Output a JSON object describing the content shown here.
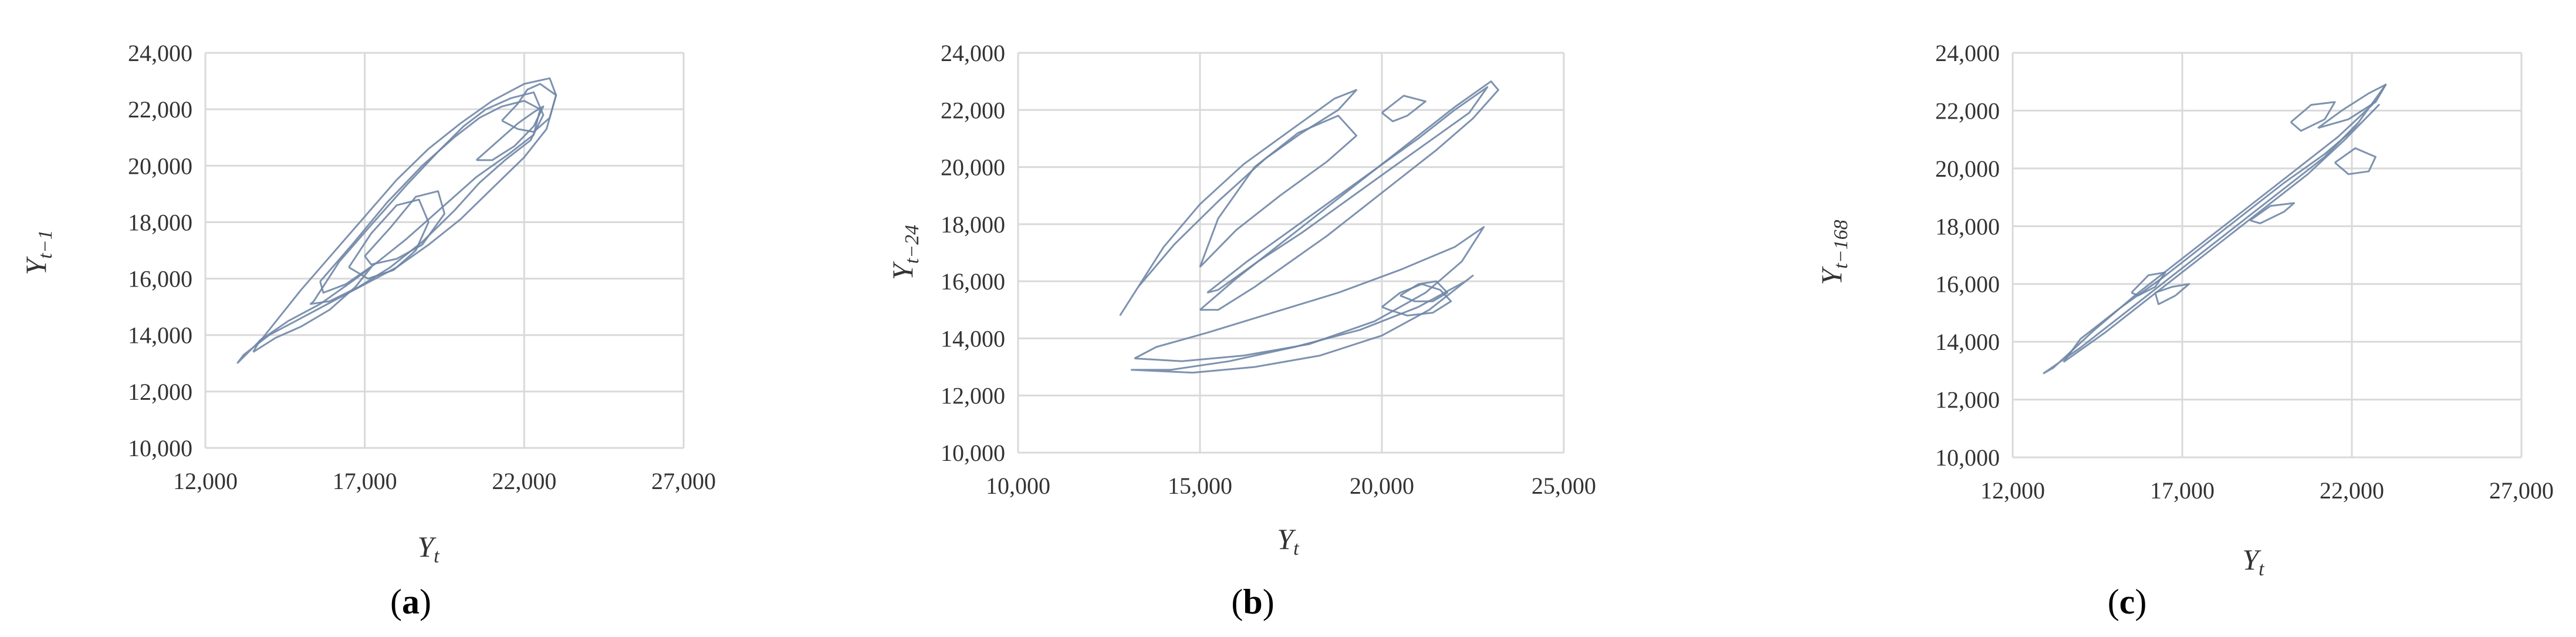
{
  "chart_data": [
    {
      "type": "line",
      "panel_label": "a",
      "xlabel": "Y",
      "xlabel_sub": "t",
      "ylabel": "Y",
      "ylabel_sub": "t−1",
      "xlim": [
        12000,
        27000
      ],
      "ylim": [
        10000,
        24000
      ],
      "xticks": [
        "12,000",
        "17,000",
        "22,000",
        "27,000"
      ],
      "yticks": [
        "10,000",
        "12,000",
        "14,000",
        "16,000",
        "18,000",
        "20,000",
        "22,000",
        "24,000"
      ],
      "grid": true,
      "color": "#6f86a6",
      "series": [
        {
          "x": [
            13000,
            13800,
            15000,
            16000,
            17000,
            18000,
            19000,
            20000,
            21000,
            22000,
            22800,
            23000,
            22700,
            22000,
            21000,
            20000,
            19000,
            18000,
            17000,
            16000,
            15000,
            14000,
            13200,
            13000
          ],
          "y": [
            13000,
            13900,
            15600,
            16900,
            18200,
            19500,
            20600,
            21500,
            22300,
            22900,
            23100,
            22500,
            21300,
            20300,
            19200,
            18100,
            17200,
            16400,
            15800,
            15200,
            14600,
            14000,
            13300,
            13000
          ]
        },
        {
          "x": [
            15400,
            16200,
            17200,
            18300,
            19300,
            20100,
            20800,
            21600,
            22300,
            22600,
            22200,
            21400,
            20600,
            19800,
            18800,
            17800,
            16800,
            15900,
            15300,
            15400
          ],
          "y": [
            15200,
            16600,
            17900,
            19300,
            20500,
            21400,
            22000,
            22400,
            22600,
            21800,
            20900,
            20200,
            19400,
            18400,
            17300,
            16400,
            15700,
            15200,
            15100,
            15200
          ]
        },
        {
          "x": [
            15600,
            16600,
            17700,
            18800,
            19800,
            20600,
            21300,
            22000,
            22500,
            22300,
            21500,
            20500,
            19400,
            18300,
            17300,
            16400,
            15700,
            15600
          ],
          "y": [
            15900,
            17200,
            18700,
            20000,
            21000,
            21700,
            22100,
            22300,
            22000,
            21100,
            20400,
            19600,
            18500,
            17400,
            16500,
            15800,
            15500,
            15900
          ]
        },
        {
          "x": [
            16500,
            17200,
            18000,
            18700,
            19000,
            18600,
            17900,
            17100,
            16500
          ],
          "y": [
            16400,
            17600,
            18600,
            18800,
            18000,
            17000,
            16300,
            16000,
            16400
          ]
        },
        {
          "x": [
            17000,
            17800,
            18600,
            19300,
            19500,
            18800,
            18000,
            17200,
            17000
          ],
          "y": [
            16800,
            17800,
            18900,
            19100,
            18300,
            17200,
            16700,
            16500,
            16800
          ]
        },
        {
          "x": [
            20500,
            21200,
            21800,
            22300,
            22600,
            22300,
            21700,
            21000,
            20500
          ],
          "y": [
            20200,
            20900,
            21500,
            21900,
            22100,
            21400,
            20700,
            20200,
            20200
          ]
        },
        {
          "x": [
            13500,
            14200,
            15000,
            15900,
            16700,
            17200,
            16600,
            15600,
            14600,
            13700,
            13500
          ],
          "y": [
            13400,
            13900,
            14300,
            14900,
            15700,
            16400,
            15900,
            15100,
            14500,
            13800,
            13400
          ]
        },
        {
          "x": [
            21300,
            21800,
            22100,
            22500,
            23000,
            22800,
            22300,
            21800,
            21300
          ],
          "y": [
            21600,
            22200,
            22700,
            22900,
            22500,
            21700,
            21200,
            21300,
            21600
          ]
        }
      ]
    },
    {
      "type": "line",
      "panel_label": "b",
      "xlabel": "Y",
      "xlabel_sub": "t",
      "ylabel": "Y",
      "ylabel_sub": "t−24",
      "xlim": [
        10000,
        25000
      ],
      "ylim": [
        10000,
        24000
      ],
      "xticks": [
        "10,000",
        "15,000",
        "20,000",
        "25,000"
      ],
      "yticks": [
        "10,000",
        "12,000",
        "14,000",
        "16,000",
        "18,000",
        "20,000",
        "22,000",
        "24,000"
      ],
      "grid": true,
      "color": "#6f86a6",
      "series": [
        {
          "x": [
            15000,
            16000,
            17000,
            18000,
            19000,
            20000,
            21000,
            22000,
            23000,
            23200,
            22500,
            21500,
            20500,
            19500,
            18500,
            17500,
            16500,
            15500,
            15000
          ],
          "y": [
            15000,
            16100,
            17100,
            18100,
            19100,
            20100,
            21100,
            22100,
            23000,
            22700,
            21700,
            20600,
            19600,
            18600,
            17600,
            16700,
            15800,
            15000,
            15000
          ]
        },
        {
          "x": [
            15200,
            16300,
            17500,
            18700,
            19900,
            21000,
            22000,
            22900,
            22400,
            21300,
            20200,
            19000,
            17800,
            16600,
            15500,
            15200
          ],
          "y": [
            15600,
            16700,
            17800,
            18900,
            20000,
            21000,
            22000,
            22800,
            21900,
            20900,
            19900,
            18800,
            17700,
            16700,
            15700,
            15600
          ]
        },
        {
          "x": [
            12800,
            13300,
            14300,
            15500,
            16800,
            17800,
            18800,
            19300,
            18700,
            17500,
            16200,
            15000,
            14000,
            13200,
            12800
          ],
          "y": [
            14800,
            15800,
            17300,
            18800,
            20300,
            21200,
            22000,
            22700,
            22400,
            21300,
            20100,
            18700,
            17200,
            15600,
            14800
          ]
        },
        {
          "x": [
            15000,
            16000,
            17200,
            18500,
            19300,
            18800,
            17700,
            16500,
            15500,
            15000
          ],
          "y": [
            16500,
            17800,
            19000,
            20200,
            21100,
            21800,
            21200,
            20000,
            18200,
            16500
          ]
        },
        {
          "x": [
            20000,
            20600,
            21200,
            20700,
            20300,
            20000
          ],
          "y": [
            21900,
            22500,
            22300,
            21800,
            21600,
            21900
          ]
        },
        {
          "x": [
            13200,
            14500,
            16200,
            18000,
            19800,
            21200,
            22200,
            22800,
            22000,
            20500,
            18800,
            17000,
            15200,
            13800,
            13200
          ],
          "y": [
            13300,
            13200,
            13400,
            13800,
            14600,
            15600,
            16700,
            17900,
            17200,
            16400,
            15600,
            14900,
            14200,
            13700,
            13300
          ]
        },
        {
          "x": [
            13100,
            14800,
            16500,
            18300,
            20000,
            21300,
            22500,
            22300,
            21000,
            19400,
            17600,
            15800,
            14200,
            13100
          ],
          "y": [
            12900,
            12800,
            13000,
            13400,
            14100,
            15000,
            16200,
            16000,
            15100,
            14300,
            13700,
            13200,
            12900,
            12900
          ]
        },
        {
          "x": [
            20000,
            20500,
            21100,
            21600,
            21900,
            21400,
            20700,
            20200,
            20000
          ],
          "y": [
            15100,
            15600,
            15900,
            15700,
            15300,
            14900,
            14800,
            15000,
            15100
          ]
        },
        {
          "x": [
            20500,
            21000,
            21500,
            21800,
            21400,
            20900,
            20500
          ],
          "y": [
            15500,
            15900,
            16000,
            15600,
            15300,
            15300,
            15500
          ]
        }
      ]
    },
    {
      "type": "line",
      "panel_label": "c",
      "xlabel": "Y",
      "xlabel_sub": "t",
      "ylabel": "Y",
      "ylabel_sub": "t−168",
      "xlim": [
        12000,
        27000
      ],
      "ylim": [
        10000,
        24000
      ],
      "xticks": [
        "12,000",
        "17,000",
        "22,000",
        "27,000"
      ],
      "yticks": [
        "10,000",
        "12,000",
        "14,000",
        "16,000",
        "18,000",
        "20,000",
        "22,000",
        "24,000"
      ],
      "grid": true,
      "color": "#6f86a6",
      "series": [
        {
          "x": [
            12900,
            14000,
            15200,
            16400,
            17600,
            18800,
            20000,
            21200,
            22200,
            23000,
            22600,
            21600,
            20400,
            19200,
            18000,
            16800,
            15600,
            14400,
            13200,
            12900
          ],
          "y": [
            12900,
            13800,
            14900,
            16000,
            17100,
            18200,
            19300,
            20400,
            21600,
            22900,
            22200,
            21100,
            20000,
            18900,
            17800,
            16700,
            15600,
            14400,
            13100,
            12900
          ]
        },
        {
          "x": [
            13500,
            14700,
            15900,
            17100,
            18300,
            19500,
            20700,
            21800,
            22800,
            22300,
            21200,
            20000,
            18800,
            17600,
            16400,
            15200,
            14000,
            13500
          ],
          "y": [
            13300,
            14300,
            15400,
            16500,
            17600,
            18700,
            19800,
            21000,
            22200,
            21600,
            20500,
            19500,
            18400,
            17300,
            16200,
            15200,
            14100,
            13300
          ]
        },
        {
          "x": [
            15500,
            16000,
            16500,
            16200,
            15700,
            15500
          ],
          "y": [
            15700,
            16300,
            16400,
            15900,
            15600,
            15700
          ]
        },
        {
          "x": [
            16200,
            16700,
            17200,
            16800,
            16300,
            16200
          ],
          "y": [
            15700,
            15900,
            16000,
            15600,
            15300,
            15700
          ]
        },
        {
          "x": [
            19000,
            19600,
            20300,
            20000,
            19300,
            19000
          ],
          "y": [
            18200,
            18700,
            18800,
            18500,
            18100,
            18200
          ]
        },
        {
          "x": [
            20200,
            20800,
            21500,
            21200,
            20500,
            20200
          ],
          "y": [
            21600,
            22200,
            22300,
            21700,
            21300,
            21600
          ]
        },
        {
          "x": [
            21500,
            22100,
            22700,
            22500,
            21900,
            21500
          ],
          "y": [
            20200,
            20700,
            20400,
            19900,
            19800,
            20200
          ]
        },
        {
          "x": [
            21000,
            21700,
            22500,
            23000,
            22700,
            21900,
            21000
          ],
          "y": [
            21400,
            22000,
            22600,
            22900,
            22300,
            21700,
            21400
          ]
        }
      ]
    }
  ]
}
